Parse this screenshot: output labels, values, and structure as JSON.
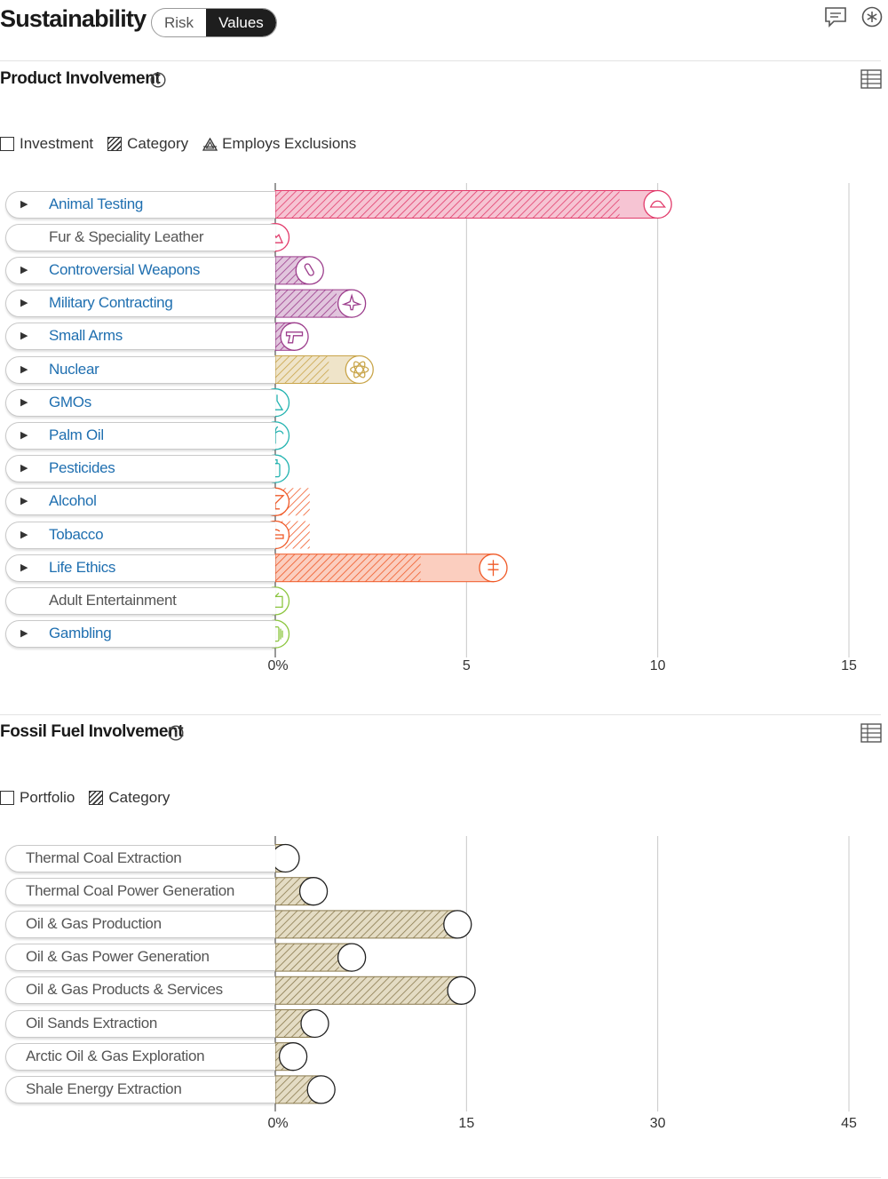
{
  "header": {
    "title": "Sustainability",
    "toggle": [
      "Risk",
      "Values"
    ],
    "active_toggle": "Values",
    "icons": [
      "comment-icon",
      "asterisk-icon"
    ]
  },
  "product": {
    "title": "Product Involvement",
    "legend": [
      "Investment",
      "Category",
      "Employs Exclusions"
    ]
  },
  "fossil": {
    "title": "Fossil Fuel Involvement",
    "legend": [
      "Portfolio",
      "Category"
    ]
  },
  "colors": {
    "animal": "#e23b6b",
    "weapons": "#9c3d8c",
    "nuclear": "#c9a54a",
    "green_tech": "#22b3b0",
    "vice": "#f05a28",
    "neutral_green": "#8cc63f",
    "fossil": "#8a7a4e"
  },
  "chart_data": [
    {
      "type": "bar",
      "title": "Product Involvement",
      "xlim": [
        0,
        15
      ],
      "ticks": [
        "0%",
        "5",
        "10",
        "15"
      ],
      "categories": [
        "Animal Testing",
        "Fur & Speciality Leather",
        "Controversial Weapons",
        "Military Contracting",
        "Small Arms",
        "Nuclear",
        "GMOs",
        "Palm Oil",
        "Pesticides",
        "Alcohol",
        "Tobacco",
        "Life Ethics",
        "Adult Entertainment",
        "Gambling"
      ],
      "expandable": [
        true,
        false,
        true,
        true,
        true,
        true,
        true,
        true,
        true,
        true,
        true,
        true,
        false,
        true
      ],
      "series": [
        {
          "name": "Investment",
          "values": [
            10.0,
            0.0,
            0.9,
            2.0,
            0.5,
            2.2,
            0.0,
            0.0,
            0.0,
            0.0,
            0.0,
            5.7,
            0.0,
            0.0
          ]
        },
        {
          "name": "Category",
          "values": [
            9.0,
            0.0,
            0.7,
            1.6,
            0.3,
            1.4,
            0.05,
            0.0,
            0.15,
            0.9,
            0.9,
            3.8,
            0.0,
            0.0
          ]
        }
      ],
      "icons": [
        "animal-icon",
        "fur-icon",
        "bomb-icon",
        "plane-icon",
        "gun-icon",
        "atom-icon",
        "flask-icon",
        "palm-icon",
        "spray-icon",
        "cocktail-icon",
        "cigarette-icon",
        "medicine-icon",
        "tv-icon",
        "card-icon"
      ]
    },
    {
      "type": "bar",
      "title": "Fossil Fuel Involvement",
      "xlim": [
        0,
        45
      ],
      "ticks": [
        "0%",
        "15",
        "30",
        "45"
      ],
      "categories": [
        "Thermal Coal Extraction",
        "Thermal Coal Power Generation",
        "Oil & Gas Production",
        "Oil & Gas Power Generation",
        "Oil & Gas Products & Services",
        "Oil Sands Extraction",
        "Arctic Oil & Gas Exploration",
        "Shale Energy Extraction"
      ],
      "series": [
        {
          "name": "Portfolio",
          "values": [
            0.8,
            3.0,
            14.3,
            6.0,
            14.6,
            3.1,
            1.4,
            3.6
          ]
        },
        {
          "name": "Category",
          "values": [
            0.0,
            2.5,
            13.8,
            5.0,
            13.9,
            2.8,
            0.7,
            3.4
          ]
        }
      ]
    }
  ]
}
